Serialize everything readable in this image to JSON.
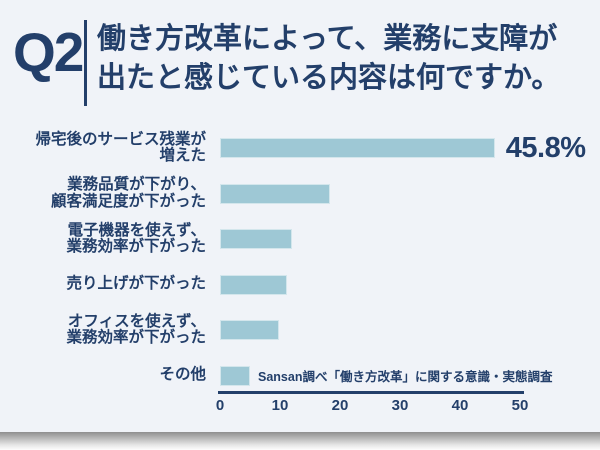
{
  "header": {
    "question_number": "Q2",
    "title_line1": "働き方改革によって、業務に支障が",
    "title_line2": "出たと感じている内容は何ですか。"
  },
  "chart_data": {
    "type": "bar",
    "orientation": "horizontal",
    "title": "働き方改革によって、業務に支障が出たと感じている内容は何ですか。",
    "categories": [
      [
        "帰宅後のサービス残業が",
        "増えた"
      ],
      [
        "業務品質が下がり、",
        "顧客満足度が下がった"
      ],
      [
        "電子機器を使えず、",
        "業務効率が下がった"
      ],
      [
        "売り上げが下がった"
      ],
      [
        "オフィスを使えず、",
        "業務効率が下がった"
      ],
      [
        "その他"
      ]
    ],
    "values": [
      45.8,
      18.3,
      12.0,
      11.2,
      9.9,
      5.0
    ],
    "value_labels": [
      "45.8%",
      "",
      "",
      "",
      "",
      ""
    ],
    "xlim": [
      0,
      50
    ],
    "x_ticks": [
      "0",
      "10",
      "20",
      "30",
      "40",
      "50"
    ],
    "grid": false,
    "legend": false,
    "annotation": "Sansan調べ「働き方改革」に関する意識・実態調査",
    "bar_color": "#9ec8d5",
    "text_color": "#233f6a",
    "background_color": "#f0f3f8"
  }
}
